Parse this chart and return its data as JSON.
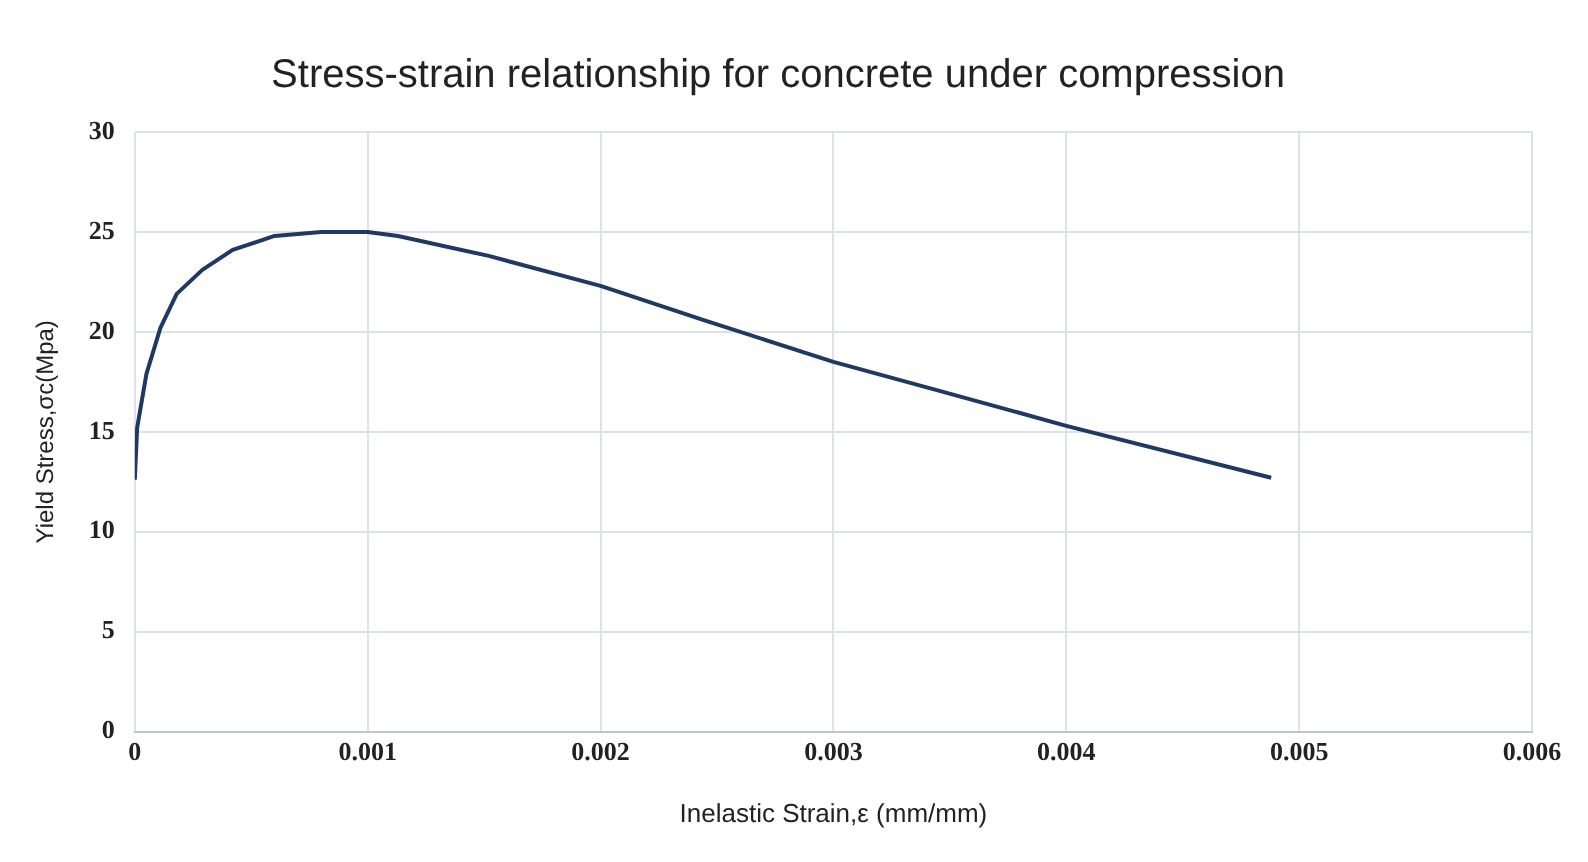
{
  "chart_data": {
    "type": "line",
    "title": "Stress-strain relationship for concrete under compression",
    "xlabel": "Inelastic Strain,ε (mm/mm)",
    "ylabel": "Yield Stress,σc(Mpa)",
    "x": [
      0,
      1e-05,
      5e-05,
      0.00011,
      0.00018,
      0.00029,
      0.00042,
      0.0006,
      0.0008,
      0.001,
      0.00113,
      0.00152,
      0.002,
      0.00244,
      0.003,
      0.00344,
      0.004,
      0.00488
    ],
    "series": [
      {
        "color": "#1f3864",
        "values": [
          12.6,
          15.2,
          17.9,
          20.2,
          21.9,
          23.1,
          24.1,
          24.8,
          25,
          25,
          24.8,
          23.8,
          22.3,
          20.6,
          18.5,
          17.1,
          15.3,
          12.7
        ]
      }
    ],
    "xlim": [
      0,
      0.006
    ],
    "xticks": [
      0,
      0.001,
      0.002,
      0.003,
      0.004,
      0.005,
      0.006
    ],
    "ylim": [
      0,
      30
    ],
    "yticks": [
      0,
      5,
      10,
      15,
      20,
      25,
      30
    ],
    "grid": true,
    "legend": false,
    "marker": "none",
    "line_style": "solid"
  }
}
